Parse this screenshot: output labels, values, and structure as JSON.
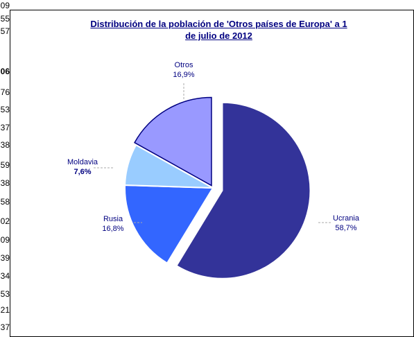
{
  "background_cells": [
    {
      "text": "09",
      "bold": false
    },
    {
      "text": "55",
      "bold": false
    },
    {
      "text": "57",
      "bold": false
    },
    {
      "text": "06",
      "bold": true
    },
    {
      "text": "76",
      "bold": false
    },
    {
      "text": "53",
      "bold": false
    },
    {
      "text": "37",
      "bold": false
    },
    {
      "text": "38",
      "bold": false
    },
    {
      "text": "59",
      "bold": false
    },
    {
      "text": "38",
      "bold": false
    },
    {
      "text": "58",
      "bold": false
    },
    {
      "text": "02",
      "bold": false
    },
    {
      "text": "09",
      "bold": false
    },
    {
      "text": "39",
      "bold": false
    },
    {
      "text": "34",
      "bold": false
    },
    {
      "text": "53",
      "bold": false
    },
    {
      "text": "21",
      "bold": false
    },
    {
      "text": "37",
      "bold": false
    }
  ],
  "chart_data": {
    "type": "pie",
    "title": "Distribución de la población de 'Otros países de Europa' a 1 de julio de 2012",
    "categories": [
      "Ucrania",
      "Rusia",
      "Moldavia",
      "Otros"
    ],
    "values": [
      58.7,
      16.8,
      7.6,
      16.9
    ],
    "value_labels": [
      "58,7%",
      "16,8%",
      "7,6%",
      "16,9%"
    ],
    "colors": [
      "#333399",
      "#3366ff",
      "#99ccff",
      "#9999ff"
    ]
  }
}
